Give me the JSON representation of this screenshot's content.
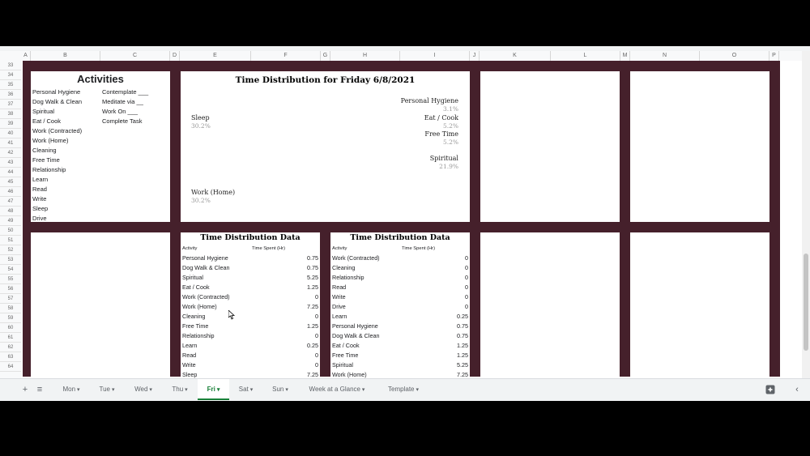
{
  "grid": {
    "columns": [
      "A",
      "B",
      "C",
      "D",
      "E",
      "F",
      "G",
      "H",
      "I",
      "J",
      "K",
      "L",
      "M",
      "N",
      "O",
      "P"
    ],
    "rows": [
      "33",
      "34",
      "35",
      "36",
      "37",
      "38",
      "39",
      "40",
      "41",
      "42",
      "43",
      "44",
      "45",
      "46",
      "47",
      "48",
      "49",
      "50",
      "51",
      "52",
      "53",
      "54",
      "55",
      "56",
      "57",
      "58",
      "59",
      "60",
      "61",
      "62",
      "63",
      "64"
    ]
  },
  "activities": {
    "title": "Activities",
    "col1": [
      "Personal Hygiene",
      "Dog Walk & Clean",
      "Spiritual",
      "Eat / Cook",
      "Work (Contracted)",
      "Work (Home)",
      "Cleaning",
      "Free Time",
      "Relationship",
      "Learn",
      "Read",
      "Write",
      "Sleep",
      "Drive"
    ],
    "col2": [
      "Contemplate ___",
      "Meditate via __",
      "Work On ___",
      "Complete Task"
    ]
  },
  "chart": {
    "title": "Time Distribution for Friday 6/8/2021",
    "labels": [
      {
        "name": "Personal Hygiene",
        "pct": "3.1%"
      },
      {
        "name": "Eat / Cook",
        "pct": "5.2%"
      },
      {
        "name": "Free Time",
        "pct": "5.2%"
      },
      {
        "name": "Spiritual",
        "pct": "21.9%"
      },
      {
        "name": "Sleep",
        "pct": "30.2%"
      },
      {
        "name": "Work (Home)",
        "pct": "30.2%"
      }
    ],
    "slice_labels": [
      "30.2%",
      "21.9%",
      "30.2%"
    ]
  },
  "chart_data": {
    "type": "pie",
    "title": "Time Distribution for Friday 6/8/2021",
    "categories": [
      "Work (Contracted)",
      "Personal Hygiene",
      "Dog Walk & Clean",
      "Learn",
      "Eat / Cook",
      "Free Time",
      "Spiritual",
      "Work (Home)",
      "Sleep"
    ],
    "values": [
      0.0,
      0.75,
      0.75,
      0.25,
      1.25,
      1.25,
      5.25,
      7.25,
      7.25
    ],
    "colors": [
      "#8da0cb",
      "#e65a5a",
      "#f4d03f",
      "#7ac47a",
      "#9b8fd0",
      "#f28e4f",
      "#6ccfc4",
      "#b3c8f5",
      "#f0a8ab"
    ]
  },
  "table1": {
    "title": "Time Distribution Data",
    "col_activity": "Activity",
    "col_time": "Time Spent (Hr)",
    "rows": [
      {
        "a": "Personal Hygiene",
        "v": "0.75"
      },
      {
        "a": "Dog Walk & Clean",
        "v": "0.75"
      },
      {
        "a": "Spiritual",
        "v": "5.25"
      },
      {
        "a": "Eat / Cook",
        "v": "1.25"
      },
      {
        "a": "Work (Contracted)",
        "v": "0"
      },
      {
        "a": "Work (Home)",
        "v": "7.25"
      },
      {
        "a": "Cleaning",
        "v": "0"
      },
      {
        "a": "Free Time",
        "v": "1.25"
      },
      {
        "a": "Relationship",
        "v": "0"
      },
      {
        "a": "Learn",
        "v": "0.25"
      },
      {
        "a": "Read",
        "v": "0"
      },
      {
        "a": "Write",
        "v": "0"
      },
      {
        "a": "Sleep",
        "v": "7.25"
      }
    ]
  },
  "table2": {
    "title": "Time Distribution Data",
    "col_activity": "Activity",
    "col_time": "Time Spent (Hr)",
    "rows": [
      {
        "a": "Work (Contracted)",
        "v": "0"
      },
      {
        "a": "Cleaning",
        "v": "0"
      },
      {
        "a": "Relationship",
        "v": "0"
      },
      {
        "a": "Read",
        "v": "0"
      },
      {
        "a": "Write",
        "v": "0"
      },
      {
        "a": "Drive",
        "v": "0"
      },
      {
        "a": "Learn",
        "v": "0.25"
      },
      {
        "a": "Personal Hygiene",
        "v": "0.75"
      },
      {
        "a": "Dog Walk & Clean",
        "v": "0.75"
      },
      {
        "a": "Eat / Cook",
        "v": "1.25"
      },
      {
        "a": "Free Time",
        "v": "1.25"
      },
      {
        "a": "Spiritual",
        "v": "5.25"
      },
      {
        "a": "Work (Home)",
        "v": "7.25"
      }
    ]
  },
  "tabs": {
    "items": [
      "Mon",
      "Tue",
      "Wed",
      "Thu",
      "Fri",
      "Sat",
      "Sun",
      "Week at a Glance",
      "Template"
    ],
    "active": "Fri",
    "add_icon": "plus-icon",
    "list_icon": "list-icon",
    "explore_icon": "explore-icon",
    "collapse_icon": "chevron-left-icon"
  }
}
